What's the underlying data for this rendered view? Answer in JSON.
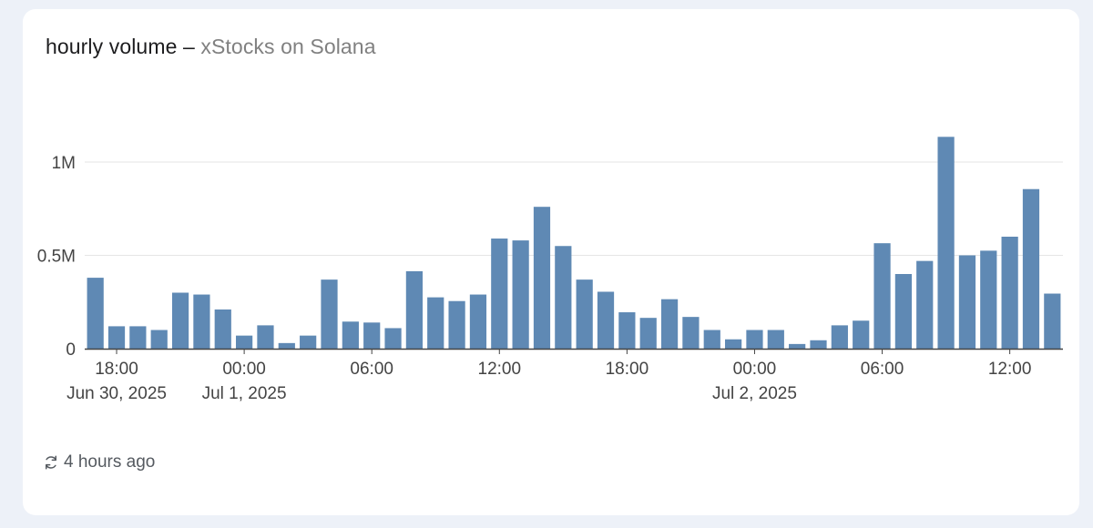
{
  "card": {
    "title": "hourly volume",
    "separator": "–",
    "subtitle": "xStocks on Solana",
    "footer_icon": "refresh-icon",
    "footer_text": "4 hours ago"
  },
  "colors": {
    "bar": "#5f89b4",
    "grid": "#e6e6e6",
    "axis": "#444444",
    "tick_text": "#444444"
  },
  "chart_data": {
    "type": "bar",
    "title": "hourly volume – xStocks on Solana",
    "x_start": "2025-06-30 17:00",
    "x_interval": "1 hour",
    "x": [
      "2025-06-30 17:00",
      "2025-06-30 18:00",
      "2025-06-30 19:00",
      "2025-06-30 20:00",
      "2025-06-30 21:00",
      "2025-06-30 22:00",
      "2025-06-30 23:00",
      "2025-07-01 00:00",
      "2025-07-01 01:00",
      "2025-07-01 02:00",
      "2025-07-01 03:00",
      "2025-07-01 04:00",
      "2025-07-01 05:00",
      "2025-07-01 06:00",
      "2025-07-01 07:00",
      "2025-07-01 08:00",
      "2025-07-01 09:00",
      "2025-07-01 10:00",
      "2025-07-01 11:00",
      "2025-07-01 12:00",
      "2025-07-01 13:00",
      "2025-07-01 14:00",
      "2025-07-01 15:00",
      "2025-07-01 16:00",
      "2025-07-01 17:00",
      "2025-07-01 18:00",
      "2025-07-01 19:00",
      "2025-07-01 20:00",
      "2025-07-01 21:00",
      "2025-07-01 22:00",
      "2025-07-01 23:00",
      "2025-07-02 00:00",
      "2025-07-02 01:00",
      "2025-07-02 02:00",
      "2025-07-02 03:00",
      "2025-07-02 04:00",
      "2025-07-02 05:00",
      "2025-07-02 06:00",
      "2025-07-02 07:00",
      "2025-07-02 08:00",
      "2025-07-02 09:00",
      "2025-07-02 10:00",
      "2025-07-02 11:00",
      "2025-07-02 12:00",
      "2025-07-02 13:00",
      "2025-07-02 14:00"
    ],
    "values": [
      380000,
      120000,
      120000,
      100000,
      300000,
      290000,
      210000,
      70000,
      125000,
      30000,
      70000,
      370000,
      145000,
      140000,
      110000,
      415000,
      275000,
      255000,
      290000,
      590000,
      580000,
      760000,
      550000,
      370000,
      305000,
      195000,
      165000,
      265000,
      170000,
      100000,
      50000,
      100000,
      100000,
      25000,
      45000,
      125000,
      150000,
      565000,
      400000,
      470000,
      1135000,
      500000,
      525000,
      600000,
      855000,
      295000
    ],
    "ylim": [
      0,
      1250000
    ],
    "y_ticks": [
      {
        "value": 0,
        "label": "0"
      },
      {
        "value": 500000,
        "label": "0.5M"
      },
      {
        "value": 1000000,
        "label": "1M"
      }
    ],
    "x_ticks": [
      {
        "x": "2025-06-30 18:00",
        "label": "18:00",
        "sublabel": "Jun 30, 2025"
      },
      {
        "x": "2025-07-01 00:00",
        "label": "00:00",
        "sublabel": "Jul 1, 2025"
      },
      {
        "x": "2025-07-01 06:00",
        "label": "06:00",
        "sublabel": ""
      },
      {
        "x": "2025-07-01 12:00",
        "label": "12:00",
        "sublabel": ""
      },
      {
        "x": "2025-07-01 18:00",
        "label": "18:00",
        "sublabel": ""
      },
      {
        "x": "2025-07-02 00:00",
        "label": "00:00",
        "sublabel": "Jul 2, 2025"
      },
      {
        "x": "2025-07-02 06:00",
        "label": "06:00",
        "sublabel": ""
      },
      {
        "x": "2025-07-02 12:00",
        "label": "12:00",
        "sublabel": ""
      }
    ],
    "grid": true,
    "legend": "none",
    "xlabel": "",
    "ylabel": ""
  }
}
